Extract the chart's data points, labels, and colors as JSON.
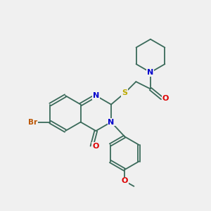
{
  "background_color": "#f0f0f0",
  "bond_color": "#3a6a5a",
  "bond_width": 1.3,
  "atom_colors": {
    "N": "#0000cc",
    "O": "#dd0000",
    "S": "#bbaa00",
    "Br": "#bb5500",
    "C": "#3a6a5a"
  },
  "figsize": [
    3.0,
    3.0
  ],
  "dpi": 100
}
